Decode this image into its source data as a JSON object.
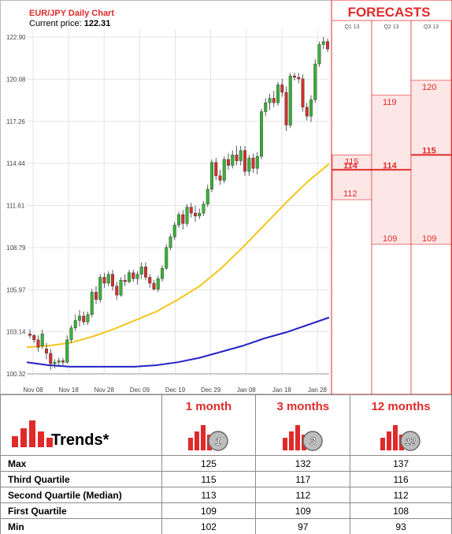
{
  "chart": {
    "title": "EUR/JPY Daily Chart",
    "price_label": "Current price:",
    "price_value": "122.31"
  },
  "forecasts": {
    "title": "FORECASTS",
    "quarters": [
      "Q1 13",
      "Q2 13",
      "Q3 13"
    ],
    "bands": [
      {
        "quarter": "Q1 13",
        "high": 115,
        "median": 114,
        "low": 112
      },
      {
        "quarter": "Q2 13",
        "high": 119,
        "median": 114,
        "low": 109
      },
      {
        "quarter": "Q3 13",
        "high": 120,
        "median": 115,
        "low": 109
      }
    ]
  },
  "chart_data": {
    "type": "candlestick",
    "title": "EUR/JPY Daily Chart",
    "y_ticks": [
      "122.90",
      "120.08",
      "117.26",
      "114.44",
      "111.61",
      "108.79",
      "105.97",
      "103.14",
      "100.32"
    ],
    "x_ticks": [
      "Nov 08",
      "Nov 18",
      "Nov 28",
      "Dec 09",
      "Dec 19",
      "Dec 29",
      "Jan 08",
      "Jan 18",
      "Jan 28"
    ],
    "ylim": [
      100.32,
      122.9
    ],
    "grid": true,
    "candles": [
      {
        "o": 103.0,
        "h": 103.3,
        "l": 102.7,
        "c": 102.9
      },
      {
        "o": 102.9,
        "h": 103.0,
        "l": 102.4,
        "c": 102.6
      },
      {
        "o": 102.6,
        "h": 102.9,
        "l": 101.8,
        "c": 102.1
      },
      {
        "o": 102.2,
        "h": 103.3,
        "l": 102.0,
        "c": 103.0
      },
      {
        "o": 102.0,
        "h": 102.4,
        "l": 101.3,
        "c": 101.7
      },
      {
        "o": 101.7,
        "h": 102.0,
        "l": 100.6,
        "c": 101.0
      },
      {
        "o": 101.0,
        "h": 101.3,
        "l": 100.7,
        "c": 101.1
      },
      {
        "o": 101.1,
        "h": 101.4,
        "l": 100.9,
        "c": 101.2
      },
      {
        "o": 101.2,
        "h": 101.4,
        "l": 100.9,
        "c": 101.1
      },
      {
        "o": 101.1,
        "h": 102.9,
        "l": 101.0,
        "c": 102.6
      },
      {
        "o": 102.6,
        "h": 103.6,
        "l": 102.4,
        "c": 103.4
      },
      {
        "o": 103.4,
        "h": 104.3,
        "l": 103.2,
        "c": 103.9
      },
      {
        "o": 103.9,
        "h": 104.6,
        "l": 103.5,
        "c": 104.2
      },
      {
        "o": 104.2,
        "h": 104.5,
        "l": 103.6,
        "c": 103.8
      },
      {
        "o": 103.8,
        "h": 104.5,
        "l": 103.6,
        "c": 104.3
      },
      {
        "o": 104.3,
        "h": 106.0,
        "l": 104.1,
        "c": 105.8
      },
      {
        "o": 105.8,
        "h": 106.2,
        "l": 105.0,
        "c": 105.3
      },
      {
        "o": 105.3,
        "h": 107.0,
        "l": 105.1,
        "c": 106.8
      },
      {
        "o": 106.8,
        "h": 107.1,
        "l": 106.1,
        "c": 106.4
      },
      {
        "o": 106.4,
        "h": 107.2,
        "l": 106.2,
        "c": 107.0
      },
      {
        "o": 107.0,
        "h": 107.3,
        "l": 105.9,
        "c": 106.2
      },
      {
        "o": 106.2,
        "h": 106.5,
        "l": 105.3,
        "c": 105.6
      },
      {
        "o": 105.6,
        "h": 106.8,
        "l": 105.5,
        "c": 106.6
      },
      {
        "o": 106.6,
        "h": 107.0,
        "l": 106.2,
        "c": 106.5
      },
      {
        "o": 106.5,
        "h": 107.3,
        "l": 106.4,
        "c": 107.1
      },
      {
        "o": 107.1,
        "h": 107.3,
        "l": 106.5,
        "c": 106.7
      },
      {
        "o": 106.7,
        "h": 107.2,
        "l": 106.3,
        "c": 107.0
      },
      {
        "o": 107.0,
        "h": 107.8,
        "l": 106.7,
        "c": 107.5
      },
      {
        "o": 107.5,
        "h": 107.8,
        "l": 106.6,
        "c": 106.8
      },
      {
        "o": 106.8,
        "h": 107.0,
        "l": 106.1,
        "c": 106.4
      },
      {
        "o": 106.4,
        "h": 106.6,
        "l": 105.9,
        "c": 106.0
      },
      {
        "o": 106.0,
        "h": 106.9,
        "l": 105.8,
        "c": 106.7
      },
      {
        "o": 106.7,
        "h": 107.6,
        "l": 106.5,
        "c": 107.4
      },
      {
        "o": 107.4,
        "h": 109.0,
        "l": 107.3,
        "c": 108.8
      },
      {
        "o": 108.8,
        "h": 109.7,
        "l": 108.6,
        "c": 109.5
      },
      {
        "o": 109.5,
        "h": 110.5,
        "l": 109.3,
        "c": 110.3
      },
      {
        "o": 110.3,
        "h": 111.2,
        "l": 110.1,
        "c": 111.0
      },
      {
        "o": 111.0,
        "h": 111.3,
        "l": 110.0,
        "c": 110.4
      },
      {
        "o": 110.4,
        "h": 111.7,
        "l": 110.2,
        "c": 111.5
      },
      {
        "o": 111.5,
        "h": 111.8,
        "l": 110.8,
        "c": 111.1
      },
      {
        "o": 111.1,
        "h": 111.6,
        "l": 110.5,
        "c": 110.9
      },
      {
        "o": 110.9,
        "h": 111.4,
        "l": 110.7,
        "c": 111.1
      },
      {
        "o": 111.1,
        "h": 111.9,
        "l": 110.9,
        "c": 111.7
      },
      {
        "o": 111.7,
        "h": 113.0,
        "l": 111.5,
        "c": 112.7
      },
      {
        "o": 112.7,
        "h": 114.7,
        "l": 112.5,
        "c": 114.5
      },
      {
        "o": 114.5,
        "h": 114.8,
        "l": 113.3,
        "c": 113.6
      },
      {
        "o": 113.6,
        "h": 114.0,
        "l": 113.0,
        "c": 113.3
      },
      {
        "o": 113.3,
        "h": 114.9,
        "l": 113.1,
        "c": 114.7
      },
      {
        "o": 114.7,
        "h": 115.1,
        "l": 114.0,
        "c": 114.3
      },
      {
        "o": 114.3,
        "h": 115.3,
        "l": 114.1,
        "c": 115.0
      },
      {
        "o": 115.0,
        "h": 115.6,
        "l": 114.3,
        "c": 114.6
      },
      {
        "o": 114.6,
        "h": 115.6,
        "l": 114.3,
        "c": 115.3
      },
      {
        "o": 115.3,
        "h": 115.6,
        "l": 113.6,
        "c": 113.9
      },
      {
        "o": 113.9,
        "h": 115.0,
        "l": 113.6,
        "c": 114.8
      },
      {
        "o": 114.8,
        "h": 115.1,
        "l": 113.8,
        "c": 114.1
      },
      {
        "o": 114.1,
        "h": 115.2,
        "l": 113.7,
        "c": 114.9
      },
      {
        "o": 114.9,
        "h": 118.1,
        "l": 114.7,
        "c": 117.9
      },
      {
        "o": 117.9,
        "h": 118.8,
        "l": 117.6,
        "c": 118.5
      },
      {
        "o": 118.5,
        "h": 119.1,
        "l": 118.0,
        "c": 118.8
      },
      {
        "o": 118.8,
        "h": 119.3,
        "l": 118.2,
        "c": 118.5
      },
      {
        "o": 118.5,
        "h": 119.9,
        "l": 118.3,
        "c": 119.7
      },
      {
        "o": 119.7,
        "h": 120.1,
        "l": 118.9,
        "c": 119.2
      },
      {
        "o": 119.2,
        "h": 119.6,
        "l": 116.6,
        "c": 117.0
      },
      {
        "o": 117.0,
        "h": 120.5,
        "l": 116.8,
        "c": 120.3
      },
      {
        "o": 120.3,
        "h": 120.5,
        "l": 120.0,
        "c": 120.2
      },
      {
        "o": 120.2,
        "h": 120.5,
        "l": 119.8,
        "c": 120.1
      },
      {
        "o": 120.1,
        "h": 120.4,
        "l": 117.9,
        "c": 118.2
      },
      {
        "o": 118.2,
        "h": 118.5,
        "l": 117.3,
        "c": 117.6
      },
      {
        "o": 117.6,
        "h": 119.0,
        "l": 117.2,
        "c": 118.7
      },
      {
        "o": 118.7,
        "h": 121.4,
        "l": 118.5,
        "c": 121.1
      },
      {
        "o": 121.1,
        "h": 122.6,
        "l": 120.9,
        "c": 122.4
      },
      {
        "o": 122.4,
        "h": 122.9,
        "l": 122.1,
        "c": 122.6
      },
      {
        "o": 122.6,
        "h": 122.8,
        "l": 121.9,
        "c": 122.1
      }
    ],
    "ma_short": [
      102.1,
      102.2,
      102.4,
      102.8,
      103.3,
      103.9,
      104.5,
      105.3,
      106.2,
      107.4,
      108.8,
      110.3,
      111.8,
      113.2,
      114.4
    ],
    "ma_long": [
      101.1,
      100.9,
      100.8,
      100.8,
      100.8,
      100.8,
      100.9,
      101.1,
      101.4,
      101.8,
      102.2,
      102.7,
      103.1,
      103.6,
      104.1
    ]
  },
  "trends": {
    "label": "Trends*",
    "columns": [
      {
        "title": "1 month",
        "badge": "1"
      },
      {
        "title": "3 months",
        "badge": "3"
      },
      {
        "title": "12 months",
        "badge": "12"
      }
    ],
    "rows": [
      {
        "label": "Max",
        "values": [
          "125",
          "132",
          "137"
        ]
      },
      {
        "label": "Third Quartile",
        "values": [
          "115",
          "117",
          "116"
        ]
      },
      {
        "label": "Second Quartile (Median)",
        "values": [
          "113",
          "112",
          "112"
        ]
      },
      {
        "label": "First Quartile",
        "values": [
          "109",
          "109",
          "108"
        ]
      },
      {
        "label": "Min",
        "values": [
          "102",
          "97",
          "93"
        ]
      }
    ]
  },
  "colors": {
    "up": "#3ab03a",
    "down": "#d23030",
    "ma_short": "#f5c518",
    "ma_long": "#2323c8",
    "forecast_red": "#e02a2a",
    "forecast_fill": "#fde6e6"
  }
}
